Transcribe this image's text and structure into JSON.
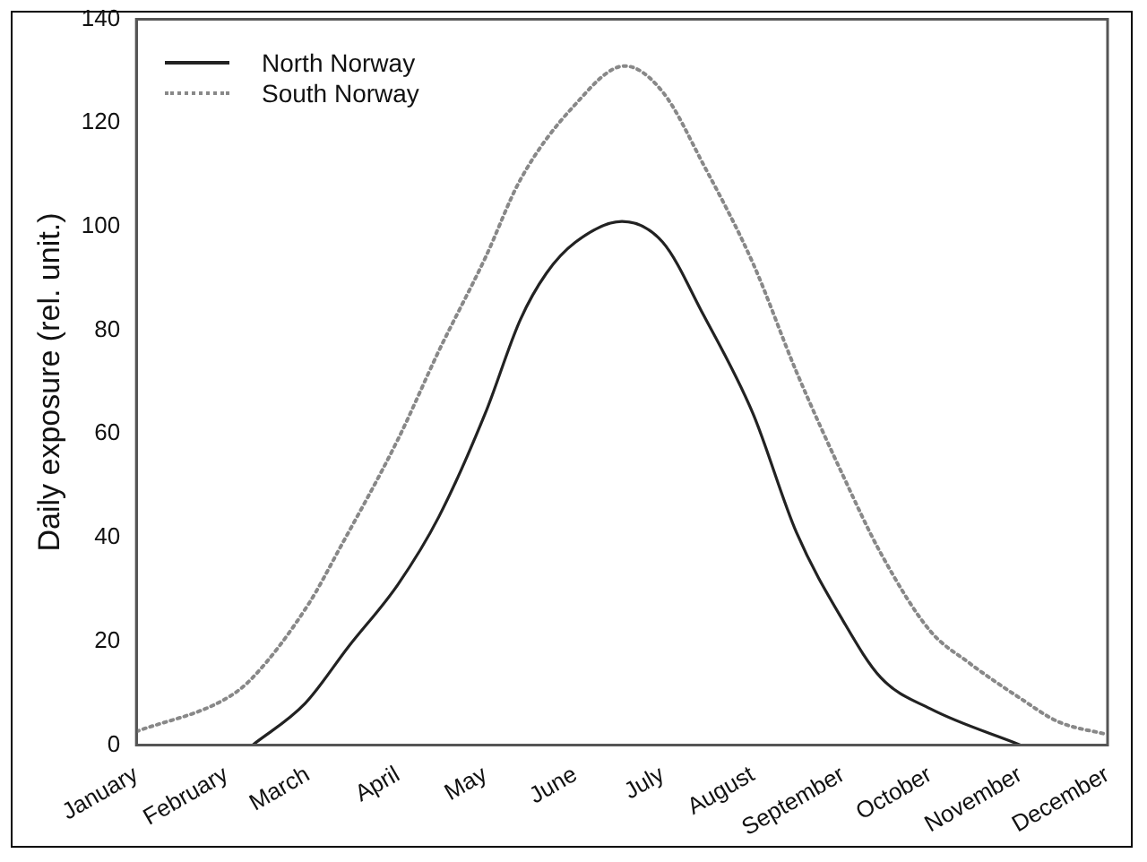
{
  "chart_data": {
    "type": "line",
    "ylabel": "Daily exposure (rel. unit.)",
    "xlim": [
      "--01-01",
      "--12-01"
    ],
    "xticks": [
      {
        "value": "--01-01",
        "label": "January"
      },
      {
        "value": "--02-01",
        "label": "February"
      },
      {
        "value": "--03-01",
        "label": "March"
      },
      {
        "value": "--04-01",
        "label": "April"
      },
      {
        "value": "--05-01",
        "label": "May"
      },
      {
        "value": "--06-01",
        "label": "June"
      },
      {
        "value": "--07-01",
        "label": "July"
      },
      {
        "value": "--08-01",
        "label": "August"
      },
      {
        "value": "--09-01",
        "label": "September"
      },
      {
        "value": "--10-01",
        "label": "October"
      },
      {
        "value": "--11-01",
        "label": "November"
      },
      {
        "value": "--12-01",
        "label": "December"
      }
    ],
    "ylim": [
      0,
      140
    ],
    "yticks": [
      0,
      20,
      40,
      60,
      80,
      100,
      120,
      140
    ],
    "grid": false,
    "legend": "top left",
    "marker": "none",
    "series": [
      {
        "name": "North Norway",
        "color": "#222222",
        "line_style": "solid",
        "x": [
          "--02-10",
          "--02-28",
          "--03-15",
          "--04-01",
          "--04-15",
          "--05-01",
          "--05-13",
          "--05-22",
          "--06-01",
          "--06-17",
          "--07-01",
          "--07-15",
          "--08-01",
          "--08-16",
          "--09-01",
          "--09-14",
          "--10-01",
          "--11-01"
        ],
        "values": [
          0,
          8,
          19,
          31,
          44,
          64,
          82,
          91,
          97,
          101,
          97,
          83,
          64,
          41,
          24,
          13,
          7,
          0
        ]
      },
      {
        "name": "South Norway",
        "color": "#888888",
        "line_style": "dotted",
        "x": [
          "--01-01",
          "--02-01",
          "--02-10",
          "--03-01",
          "--03-12",
          "--04-01",
          "--04-15",
          "--05-01",
          "--05-13",
          "--05-31",
          "--06-18",
          "--07-01",
          "--07-15",
          "--08-01",
          "--08-16",
          "--09-01",
          "--09-14",
          "--10-01",
          "--10-14",
          "--11-01",
          "--11-14",
          "--12-01"
        ],
        "values": [
          2.6,
          9,
          13,
          27,
          38,
          59,
          76,
          94,
          109,
          123,
          131,
          126,
          112,
          93,
          72,
          52,
          37,
          22,
          16,
          9,
          4.5,
          2
        ]
      }
    ]
  }
}
